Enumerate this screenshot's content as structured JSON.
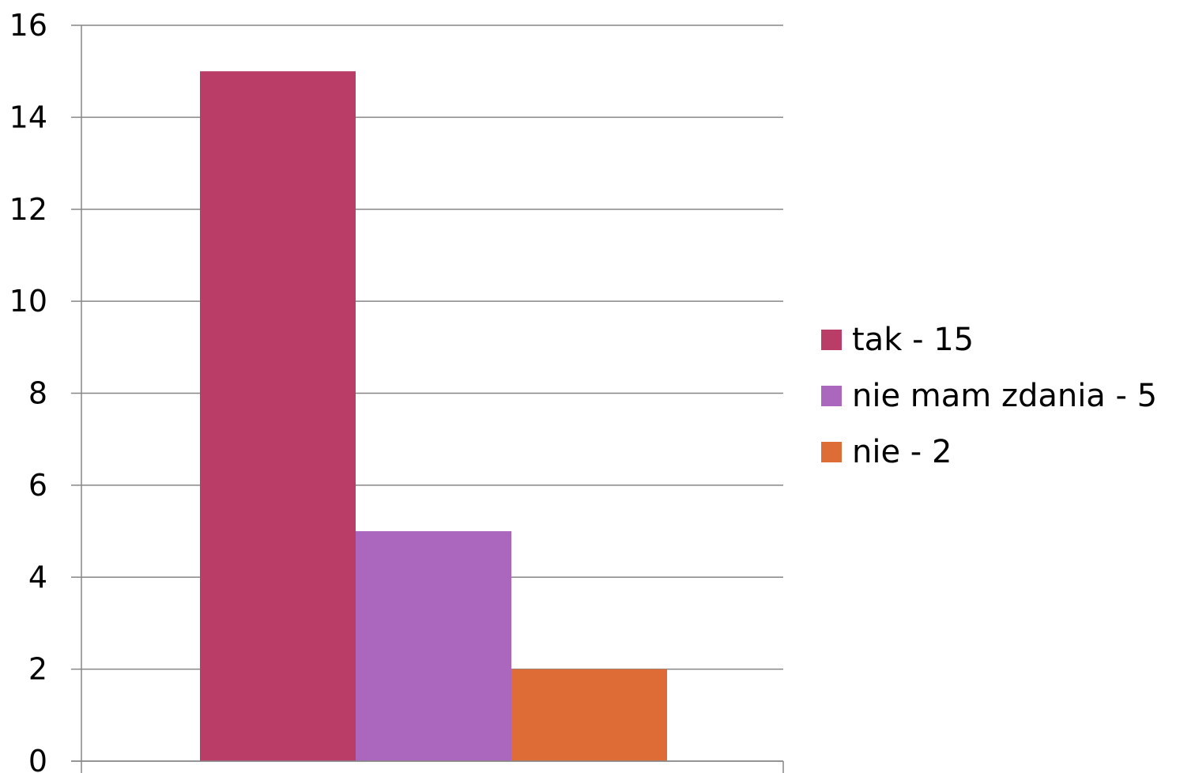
{
  "chart_data": {
    "type": "bar",
    "title": "",
    "xlabel": "",
    "ylabel": "",
    "ylim": [
      0,
      16
    ],
    "y_ticks": [
      "0",
      "2",
      "4",
      "6",
      "8",
      "10",
      "12",
      "14",
      "16"
    ],
    "grid": true,
    "legend_position": "right",
    "categories": [
      ""
    ],
    "series": [
      {
        "name": "tak - 15",
        "values": [
          15
        ],
        "color": "#B93D67"
      },
      {
        "name": "nie mam zdania - 5",
        "values": [
          5
        ],
        "color": "#AB67BE"
      },
      {
        "name": "nie - 2",
        "values": [
          2
        ],
        "color": "#DE6C37"
      }
    ]
  }
}
